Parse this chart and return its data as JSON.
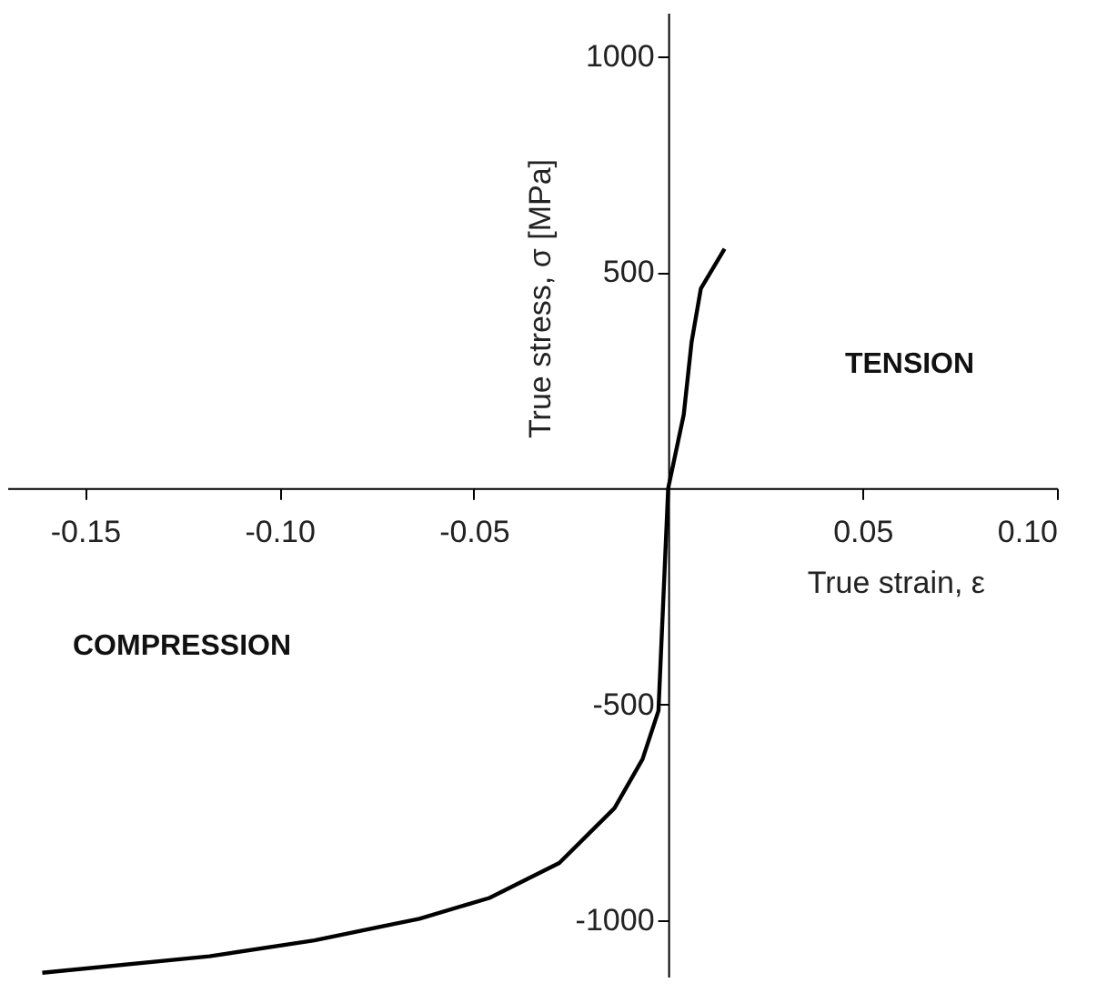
{
  "chart_data": {
    "type": "line",
    "xlabel": "True strain, ε",
    "ylabel": "True stress, σ [MPa]",
    "x": [
      -0.161,
      -0.118,
      -0.091,
      -0.064,
      -0.046,
      -0.028,
      -0.0138,
      -0.0066,
      -0.0025,
      0,
      0.004,
      0.006,
      0.0084,
      0.0145
    ],
    "series": [
      {
        "color": "#000000",
        "values": [
          -1121,
          -1083,
          -1046,
          -996,
          -948,
          -867,
          -740,
          -627,
          -515,
          0,
          170,
          337,
          462,
          554
        ]
      }
    ],
    "xlim": [
      -0.17,
      0.1
    ],
    "xticks": [
      {
        "value": -0.15,
        "label": "-0.15"
      },
      {
        "value": -0.1,
        "label": "-0.10"
      },
      {
        "value": -0.05,
        "label": "-0.05"
      },
      {
        "value": 0.05,
        "label": "0.05"
      },
      {
        "value": 0.1,
        "label": "0.10"
      }
    ],
    "ylim": [
      -1130,
      1100
    ],
    "yticks": [
      -1000,
      -500,
      500,
      1000
    ],
    "annotations": [
      "TENSION",
      "COMPRESSION"
    ],
    "grid": false,
    "marker": "none",
    "line_style": "solid"
  }
}
